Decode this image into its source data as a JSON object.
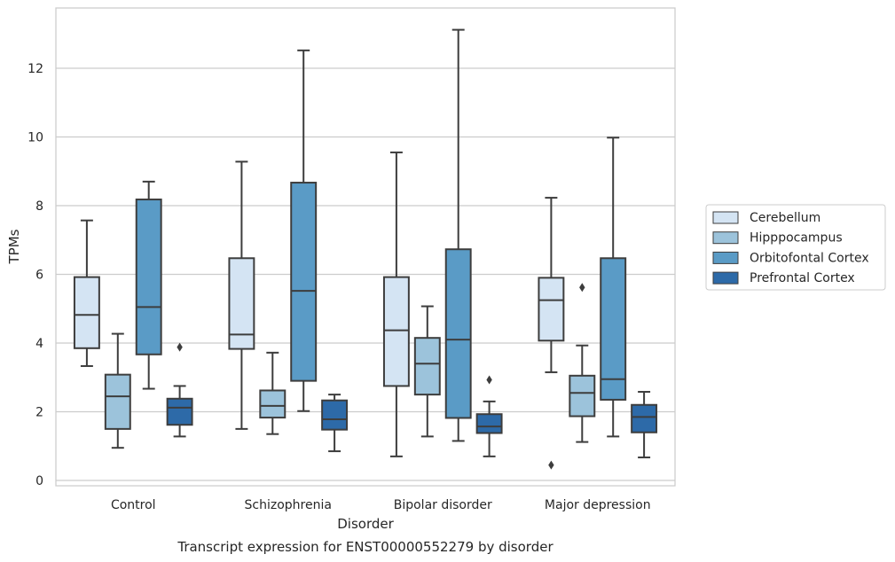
{
  "caption": "Transcript expression for ENST00000552279 by disorder",
  "chart_data": {
    "type": "box",
    "xlabel": "Disorder",
    "ylabel": "TPMs",
    "categories": [
      "Control",
      "Schizophrenia",
      "Bipolar disorder",
      "Major depression"
    ],
    "ylim": [
      -0.15,
      13.8
    ],
    "yticks": [
      0,
      2,
      4,
      6,
      8,
      10,
      12
    ],
    "grid": "horizontal",
    "legend_position": "right",
    "series": [
      {
        "name": "Cerebellum",
        "color": "#d4e4f3",
        "boxes": [
          {
            "whisker_low": 3.33,
            "q1": 3.85,
            "median": 4.82,
            "q3": 5.92,
            "whisker_high": 7.57,
            "outliers": []
          },
          {
            "whisker_low": 1.5,
            "q1": 3.83,
            "median": 4.25,
            "q3": 6.47,
            "whisker_high": 9.28,
            "outliers": []
          },
          {
            "whisker_low": 0.7,
            "q1": 2.75,
            "median": 4.37,
            "q3": 5.92,
            "whisker_high": 9.55,
            "outliers": []
          },
          {
            "whisker_low": 3.15,
            "q1": 4.07,
            "median": 5.25,
            "q3": 5.9,
            "whisker_high": 8.23,
            "outliers": [
              0.45
            ]
          }
        ]
      },
      {
        "name": "Hipppocampus",
        "color": "#9cc3db",
        "boxes": [
          {
            "whisker_low": 0.95,
            "q1": 1.5,
            "median": 2.45,
            "q3": 3.08,
            "whisker_high": 4.27,
            "outliers": []
          },
          {
            "whisker_low": 1.35,
            "q1": 1.83,
            "median": 2.17,
            "q3": 2.62,
            "whisker_high": 3.72,
            "outliers": []
          },
          {
            "whisker_low": 1.28,
            "q1": 2.5,
            "median": 3.4,
            "q3": 4.15,
            "whisker_high": 5.07,
            "outliers": []
          },
          {
            "whisker_low": 1.12,
            "q1": 1.87,
            "median": 2.55,
            "q3": 3.05,
            "whisker_high": 3.93,
            "outliers": [
              5.62
            ]
          }
        ]
      },
      {
        "name": "Orbitofontal Cortex",
        "color": "#5a9bc6",
        "boxes": [
          {
            "whisker_low": 2.67,
            "q1": 3.67,
            "median": 5.05,
            "q3": 8.18,
            "whisker_high": 8.7,
            "outliers": []
          },
          {
            "whisker_low": 2.02,
            "q1": 2.9,
            "median": 5.52,
            "q3": 8.67,
            "whisker_high": 12.52,
            "outliers": []
          },
          {
            "whisker_low": 1.15,
            "q1": 1.82,
            "median": 4.1,
            "q3": 6.73,
            "whisker_high": 13.12,
            "outliers": []
          },
          {
            "whisker_low": 1.28,
            "q1": 2.35,
            "median": 2.95,
            "q3": 6.47,
            "whisker_high": 9.98,
            "outliers": []
          }
        ]
      },
      {
        "name": "Prefrontal Cortex",
        "color": "#2d6aa8",
        "boxes": [
          {
            "whisker_low": 1.28,
            "q1": 1.62,
            "median": 2.12,
            "q3": 2.38,
            "whisker_high": 2.75,
            "outliers": [
              3.88
            ]
          },
          {
            "whisker_low": 0.85,
            "q1": 1.48,
            "median": 1.78,
            "q3": 2.33,
            "whisker_high": 2.5,
            "outliers": []
          },
          {
            "whisker_low": 0.7,
            "q1": 1.38,
            "median": 1.57,
            "q3": 1.93,
            "whisker_high": 2.3,
            "outliers": [
              2.93
            ]
          },
          {
            "whisker_low": 0.67,
            "q1": 1.4,
            "median": 1.85,
            "q3": 2.2,
            "whisker_high": 2.58,
            "outliers": []
          }
        ]
      }
    ]
  }
}
